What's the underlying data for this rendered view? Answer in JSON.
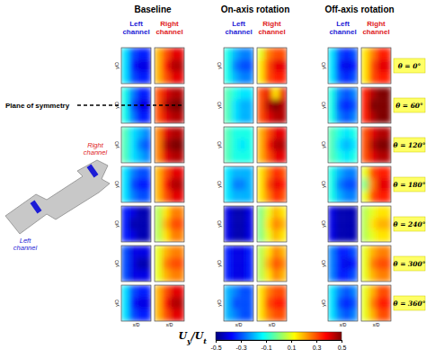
{
  "chart_data": {
    "type": "heatmap",
    "groups": [
      "Baseline",
      "On-axis rotation",
      "Off-axis rotation"
    ],
    "channels": [
      {
        "label": "Left channel",
        "color": "#1c1cd6"
      },
      {
        "label": "Right channel",
        "color": "#e0201c"
      }
    ],
    "rows": [
      "θ = 0°",
      "θ = 60°",
      "θ = 120°",
      "θ = 180°",
      "θ = 240°",
      "θ = 300°",
      "θ = 360°"
    ],
    "x_label": "x/D",
    "y_label": "y/D",
    "annotation": "Plane of symmetry",
    "panels": [
      [
        [
          [
            -0.15,
            -0.3,
            -0.35,
            -0.35
          ],
          [
            -0.15,
            -0.35,
            -0.4,
            -0.4
          ],
          [
            -0.15,
            -0.3,
            -0.35,
            -0.35
          ]
        ],
        [
          [
            0.2,
            0.3,
            0.4,
            0.4
          ],
          [
            0.2,
            0.35,
            0.45,
            0.45
          ],
          [
            0.2,
            0.3,
            0.4,
            0.4
          ]
        ],
        [
          [
            -0.1,
            -0.2,
            -0.25,
            -0.25
          ],
          [
            -0.1,
            -0.25,
            -0.3,
            -0.3
          ],
          [
            -0.1,
            -0.2,
            -0.25,
            -0.25
          ]
        ],
        [
          [
            0.1,
            0.25,
            0.3,
            0.3
          ],
          [
            0.15,
            0.3,
            0.4,
            0.4
          ],
          [
            0.15,
            0.3,
            0.35,
            0.35
          ]
        ],
        [
          [
            -0.15,
            -0.3,
            -0.35,
            -0.3
          ],
          [
            -0.15,
            -0.35,
            -0.4,
            -0.35
          ],
          [
            -0.15,
            -0.3,
            -0.35,
            -0.3
          ]
        ],
        [
          [
            0.15,
            0.25,
            0.35,
            0.35
          ],
          [
            0.15,
            0.3,
            0.4,
            0.4
          ],
          [
            0.15,
            0.3,
            0.35,
            0.35
          ]
        ]
      ],
      [
        [
          [
            -0.1,
            -0.25,
            -0.35,
            -0.35
          ],
          [
            -0.1,
            -0.3,
            -0.4,
            -0.4
          ],
          [
            -0.1,
            -0.25,
            -0.35,
            -0.35
          ]
        ],
        [
          [
            0.3,
            0.4,
            0.45,
            0.45
          ],
          [
            0.3,
            0.45,
            0.5,
            0.5
          ],
          [
            0.3,
            0.4,
            0.45,
            0.45
          ]
        ],
        [
          [
            -0.05,
            -0.1,
            -0.15,
            -0.15
          ],
          [
            -0.05,
            -0.15,
            -0.2,
            -0.2
          ],
          [
            -0.05,
            -0.15,
            -0.2,
            -0.2
          ]
        ],
        [
          [
            0.3,
            0.4,
            0.15,
            0.4
          ],
          [
            0.3,
            0.45,
            0.5,
            0.45
          ],
          [
            0.3,
            0.4,
            0.45,
            0.45
          ]
        ],
        [
          [
            -0.1,
            -0.25,
            -0.3,
            -0.25
          ],
          [
            -0.1,
            -0.3,
            -0.35,
            -0.3
          ],
          [
            -0.1,
            -0.25,
            -0.3,
            -0.25
          ]
        ],
        [
          [
            0.35,
            0.45,
            0.5,
            0.5
          ],
          [
            0.35,
            0.5,
            0.5,
            0.5
          ],
          [
            0.35,
            0.45,
            0.5,
            0.5
          ]
        ]
      ],
      [
        [
          [
            -0.05,
            -0.15,
            -0.2,
            -0.25
          ],
          [
            -0.05,
            -0.15,
            -0.25,
            -0.3
          ],
          [
            -0.05,
            -0.15,
            -0.2,
            -0.25
          ]
        ],
        [
          [
            0.25,
            0.4,
            0.45,
            0.45
          ],
          [
            0.25,
            0.45,
            0.5,
            0.5
          ],
          [
            0.25,
            0.4,
            0.45,
            0.45
          ]
        ],
        [
          [
            -0.05,
            -0.1,
            -0.1,
            -0.1
          ],
          [
            -0.05,
            -0.1,
            -0.15,
            -0.1
          ],
          [
            -0.05,
            -0.1,
            -0.1,
            -0.1
          ]
        ],
        [
          [
            0.2,
            0.3,
            0.4,
            0.4
          ],
          [
            0.2,
            0.35,
            0.45,
            0.45
          ],
          [
            0.2,
            0.3,
            0.4,
            0.4
          ]
        ],
        [
          [
            -0.05,
            -0.1,
            -0.15,
            -0.1
          ],
          [
            -0.05,
            -0.15,
            -0.2,
            -0.15
          ],
          [
            -0.05,
            -0.1,
            -0.15,
            -0.1
          ]
        ],
        [
          [
            0.3,
            0.4,
            0.45,
            0.45
          ],
          [
            0.3,
            0.45,
            0.5,
            0.5
          ],
          [
            0.3,
            0.4,
            0.45,
            0.45
          ]
        ]
      ],
      [
        [
          [
            -0.15,
            -0.25,
            -0.3,
            -0.3
          ],
          [
            -0.15,
            -0.3,
            -0.35,
            -0.35
          ],
          [
            -0.15,
            -0.25,
            -0.3,
            -0.3
          ]
        ],
        [
          [
            0.2,
            0.3,
            0.4,
            0.4
          ],
          [
            0.2,
            0.35,
            0.45,
            0.45
          ],
          [
            0.2,
            0.3,
            0.4,
            0.4
          ]
        ],
        [
          [
            -0.15,
            -0.2,
            -0.2,
            -0.2
          ],
          [
            -0.15,
            -0.25,
            -0.25,
            -0.2
          ],
          [
            -0.15,
            -0.2,
            -0.2,
            -0.2
          ]
        ],
        [
          [
            0.15,
            0.25,
            0.35,
            0.3
          ],
          [
            0.15,
            0.3,
            0.4,
            0.35
          ],
          [
            0.15,
            0.25,
            0.35,
            0.3
          ]
        ],
        [
          [
            -0.1,
            -0.2,
            -0.25,
            -0.25
          ],
          [
            -0.1,
            -0.25,
            -0.3,
            -0.3
          ],
          [
            -0.1,
            -0.2,
            -0.25,
            -0.25
          ]
        ],
        [
          [
            0.1,
            0.3,
            0.35,
            0.35
          ],
          [
            0.0,
            0.25,
            0.4,
            0.4
          ],
          [
            0.1,
            0.3,
            0.35,
            0.35
          ]
        ]
      ],
      [
        [
          [
            -0.35,
            -0.4,
            -0.45,
            -0.45
          ],
          [
            -0.35,
            -0.45,
            -0.45,
            -0.45
          ],
          [
            -0.35,
            -0.4,
            -0.45,
            -0.45
          ]
        ],
        [
          [
            0.05,
            0.15,
            0.25,
            0.25
          ],
          [
            0.05,
            0.2,
            0.3,
            0.3
          ],
          [
            0.05,
            0.15,
            0.25,
            0.25
          ]
        ],
        [
          [
            -0.4,
            -0.45,
            -0.45,
            -0.4
          ],
          [
            -0.4,
            -0.45,
            -0.45,
            -0.4
          ],
          [
            -0.4,
            -0.45,
            -0.45,
            -0.4
          ]
        ],
        [
          [
            0.0,
            0.1,
            0.2,
            0.15
          ],
          [
            0.0,
            0.15,
            0.25,
            0.2
          ],
          [
            0.0,
            0.1,
            0.2,
            0.15
          ]
        ],
        [
          [
            -0.4,
            -0.45,
            -0.45,
            -0.45
          ],
          [
            -0.4,
            -0.45,
            -0.45,
            -0.45
          ],
          [
            -0.4,
            -0.45,
            -0.45,
            -0.45
          ]
        ],
        [
          [
            0.05,
            0.1,
            0.15,
            0.15
          ],
          [
            0.05,
            0.15,
            0.2,
            0.2
          ],
          [
            0.05,
            0.1,
            0.15,
            0.15
          ]
        ]
      ],
      [
        [
          [
            -0.3,
            -0.4,
            -0.4,
            -0.4
          ],
          [
            -0.3,
            -0.4,
            -0.45,
            -0.45
          ],
          [
            -0.3,
            -0.4,
            -0.4,
            -0.4
          ]
        ],
        [
          [
            0.1,
            0.2,
            0.25,
            0.25
          ],
          [
            0.1,
            0.25,
            0.3,
            0.3
          ],
          [
            0.1,
            0.2,
            0.25,
            0.25
          ]
        ],
        [
          [
            -0.35,
            -0.4,
            -0.4,
            -0.35
          ],
          [
            -0.35,
            -0.4,
            -0.4,
            -0.35
          ],
          [
            -0.35,
            -0.4,
            -0.4,
            -0.35
          ]
        ],
        [
          [
            0.05,
            0.15,
            0.25,
            0.2
          ],
          [
            0.05,
            0.2,
            0.3,
            0.25
          ],
          [
            0.05,
            0.15,
            0.25,
            0.2
          ]
        ],
        [
          [
            -0.25,
            -0.35,
            -0.35,
            -0.3
          ],
          [
            -0.25,
            -0.35,
            -0.4,
            -0.35
          ],
          [
            -0.25,
            -0.35,
            -0.35,
            -0.3
          ]
        ],
        [
          [
            0.1,
            0.2,
            0.25,
            0.25
          ],
          [
            0.1,
            0.25,
            0.3,
            0.3
          ],
          [
            0.1,
            0.2,
            0.25,
            0.25
          ]
        ]
      ],
      [
        [
          [
            -0.15,
            -0.3,
            -0.35,
            -0.35
          ],
          [
            -0.15,
            -0.35,
            -0.4,
            -0.4
          ],
          [
            -0.15,
            -0.3,
            -0.35,
            -0.35
          ]
        ],
        [
          [
            0.2,
            0.3,
            0.4,
            0.4
          ],
          [
            0.2,
            0.35,
            0.45,
            0.45
          ],
          [
            0.2,
            0.3,
            0.4,
            0.4
          ]
        ],
        [
          [
            -0.2,
            -0.25,
            -0.3,
            -0.3
          ],
          [
            -0.2,
            -0.3,
            -0.3,
            -0.3
          ],
          [
            -0.2,
            -0.25,
            -0.3,
            -0.3
          ]
        ],
        [
          [
            0.15,
            0.25,
            0.3,
            0.3
          ],
          [
            0.15,
            0.3,
            0.35,
            0.35
          ],
          [
            0.15,
            0.25,
            0.3,
            0.3
          ]
        ],
        [
          [
            -0.15,
            -0.25,
            -0.3,
            -0.25
          ],
          [
            -0.15,
            -0.3,
            -0.35,
            -0.3
          ],
          [
            -0.15,
            -0.25,
            -0.3,
            -0.25
          ]
        ],
        [
          [
            0.1,
            0.2,
            0.3,
            0.3
          ],
          [
            0.1,
            0.25,
            0.35,
            0.35
          ],
          [
            0.1,
            0.2,
            0.3,
            0.3
          ]
        ]
      ]
    ],
    "colorbar": {
      "range": [
        -0.5,
        0.5
      ],
      "ticks": [
        -0.5,
        -0.3,
        -0.1,
        0.1,
        0.3,
        0.5
      ],
      "label_parts": [
        {
          "text": "U"
        },
        {
          "text": "y",
          "sub": true
        },
        {
          "text": "/U"
        },
        {
          "text": "t",
          "sub": true
        }
      ]
    }
  }
}
